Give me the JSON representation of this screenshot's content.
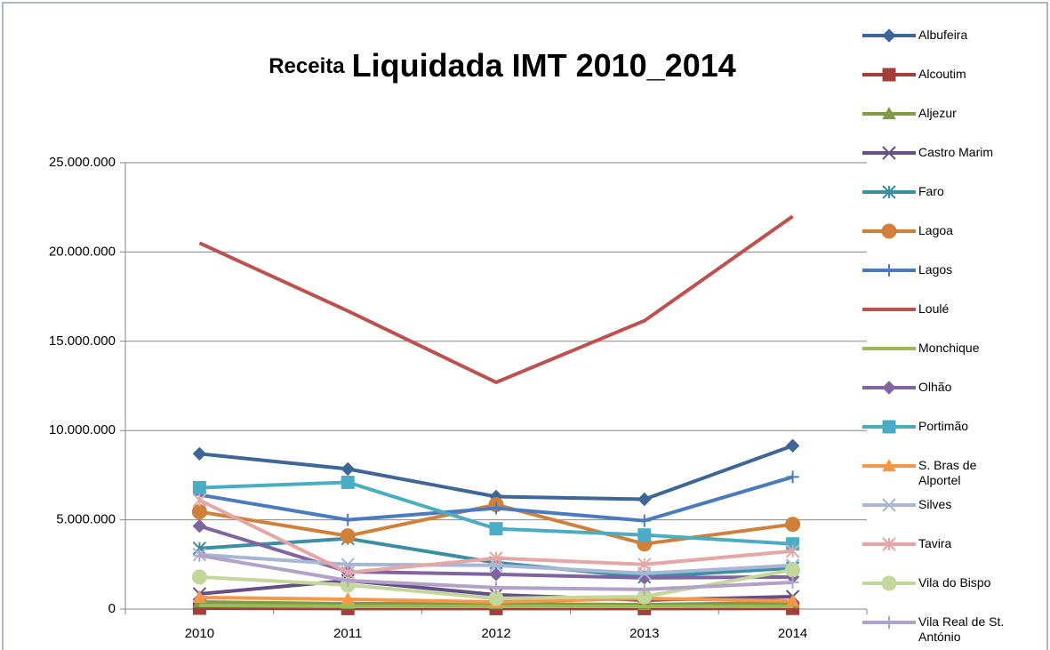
{
  "chart_data": {
    "type": "line",
    "title": [
      "Receita",
      "Liquidada IMT 2010_2014"
    ],
    "categories": [
      "2010",
      "2011",
      "2012",
      "2013",
      "2014"
    ],
    "ylim": [
      0,
      25000000
    ],
    "yticks": [
      {
        "value": 0,
        "label": "0"
      },
      {
        "value": 5000000,
        "label": "5.000.000"
      },
      {
        "value": 10000000,
        "label": "10.000.000"
      },
      {
        "value": 15000000,
        "label": "15.000.000"
      },
      {
        "value": 20000000,
        "label": "20.000.000"
      },
      {
        "value": 25000000,
        "label": "25.000.000"
      }
    ],
    "grid": true,
    "legend": "right",
    "series": [
      {
        "name": "Albufeira",
        "color": "#3d6699",
        "marker": "diamond",
        "values": [
          8700000,
          7850000,
          6300000,
          6150000,
          9150000
        ]
      },
      {
        "name": "Alcoutim",
        "color": "#a33e3b",
        "marker": "square",
        "values": [
          50000,
          30000,
          30000,
          30000,
          40000
        ]
      },
      {
        "name": "Aljezur",
        "color": "#7f9a48",
        "marker": "triangle",
        "values": [
          400000,
          300000,
          300000,
          250000,
          350000
        ]
      },
      {
        "name": "Castro Marim",
        "color": "#664f87",
        "marker": "x",
        "values": [
          850000,
          1600000,
          800000,
          500000,
          700000
        ]
      },
      {
        "name": "Faro",
        "color": "#3b8ea4",
        "marker": "star",
        "values": [
          3400000,
          3950000,
          2600000,
          1800000,
          2300000
        ]
      },
      {
        "name": "Lagoa",
        "color": "#d1803a",
        "marker": "circle",
        "values": [
          5450000,
          4100000,
          5850000,
          3650000,
          4750000
        ]
      },
      {
        "name": "Lagos",
        "color": "#4b7bbf",
        "marker": "plus",
        "values": [
          6400000,
          5000000,
          5650000,
          4950000,
          7400000
        ]
      },
      {
        "name": "Loulé",
        "color": "#c0504d",
        "marker": "none",
        "values": [
          20500000,
          16700000,
          12700000,
          16150000,
          22000000
        ]
      },
      {
        "name": "Monchique",
        "color": "#9bbb59",
        "marker": "none",
        "values": [
          200000,
          150000,
          150000,
          150000,
          150000
        ]
      },
      {
        "name": "Olhão",
        "color": "#8064a2",
        "marker": "diamond",
        "values": [
          4650000,
          2100000,
          1950000,
          1750000,
          1800000
        ]
      },
      {
        "name": "Portimão",
        "color": "#4bacc6",
        "marker": "square",
        "values": [
          6800000,
          7100000,
          4500000,
          4150000,
          3650000
        ]
      },
      {
        "name": "S. Bras de Alportel",
        "color": "#f79646",
        "marker": "triangle",
        "values": [
          650000,
          550000,
          400000,
          600000,
          450000
        ]
      },
      {
        "name": "Silves",
        "color": "#a5b6d6",
        "marker": "x",
        "values": [
          3050000,
          2500000,
          2450000,
          2000000,
          2450000
        ]
      },
      {
        "name": "Tavira",
        "color": "#e6a6a5",
        "marker": "star",
        "values": [
          6100000,
          2050000,
          2850000,
          2500000,
          3250000
        ]
      },
      {
        "name": "Vila do Bispo",
        "color": "#c4d79b",
        "marker": "circle",
        "values": [
          1800000,
          1350000,
          600000,
          700000,
          2200000
        ]
      },
      {
        "name": "Vila Real de St. António",
        "color": "#b3a2c7",
        "marker": "plus",
        "values": [
          3000000,
          1600000,
          1200000,
          1100000,
          1500000
        ]
      }
    ]
  }
}
